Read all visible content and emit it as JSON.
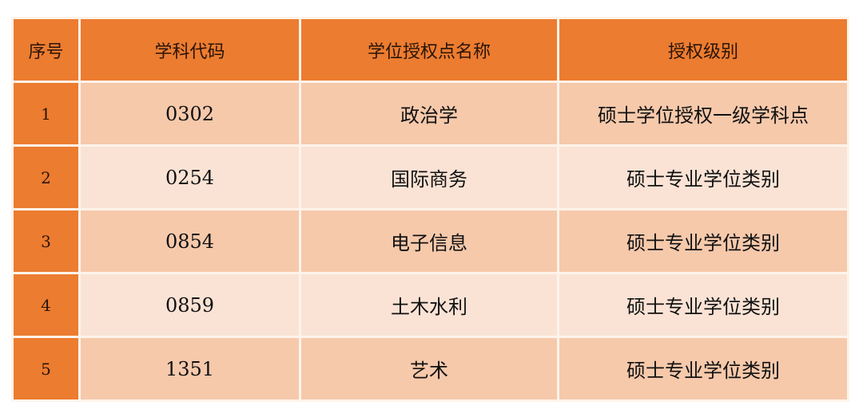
{
  "colors": {
    "header": "#ec7c30",
    "row_odd": "#f6c9ab",
    "row_even": "#fae3d5"
  },
  "headers": [
    "序号",
    "学科代码",
    "学位授权点名称",
    "授权级别"
  ],
  "rows": [
    [
      "1",
      "0302",
      "政治学",
      "硕士学位授权一级学科点"
    ],
    [
      "2",
      "0254",
      "国际商务",
      "硕士专业学位类别"
    ],
    [
      "3",
      "0854",
      "电子信息",
      "硕士专业学位类别"
    ],
    [
      "4",
      "0859",
      "土木水利",
      "硕士专业学位类别"
    ],
    [
      "5",
      "1351",
      "艺术",
      "硕士专业学位类别"
    ]
  ]
}
